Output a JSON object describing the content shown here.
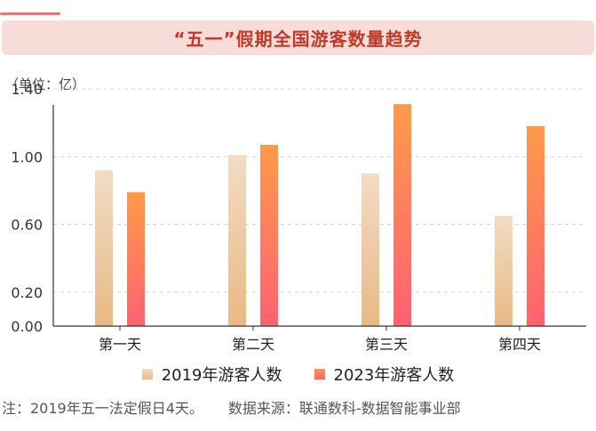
{
  "header": {
    "title": "“五一”假期全国游客数量趋势"
  },
  "unit_label": "（单位：亿）",
  "footnote": {
    "note": "注：2019年五一法定假日4天。",
    "source": "数据来源：联通数科-数据智能事业部"
  },
  "colors": {
    "series_2019_top": "#f2dcc4",
    "series_2019_bottom": "#e8b985",
    "series_2023_top": "#ff9a4a",
    "series_2023_bottom": "#ff6272",
    "accent": "#c0392b"
  },
  "chart_data": {
    "type": "bar",
    "categories": [
      "第一天",
      "第二天",
      "第三天",
      "第四天"
    ],
    "series": [
      {
        "name": "2019年游客人数",
        "values": [
          0.92,
          1.01,
          0.9,
          0.65
        ]
      },
      {
        "name": "2023年游客人数",
        "values": [
          0.79,
          1.07,
          1.31,
          1.18
        ]
      }
    ],
    "ylim": [
      0,
      1.4
    ],
    "yticks": [
      "0.00",
      "0.20",
      "0.60",
      "1.00",
      "1.40"
    ],
    "ytick_values": [
      0,
      0.2,
      0.6,
      1.0,
      1.4
    ],
    "grid": true,
    "legend": "bottom"
  }
}
